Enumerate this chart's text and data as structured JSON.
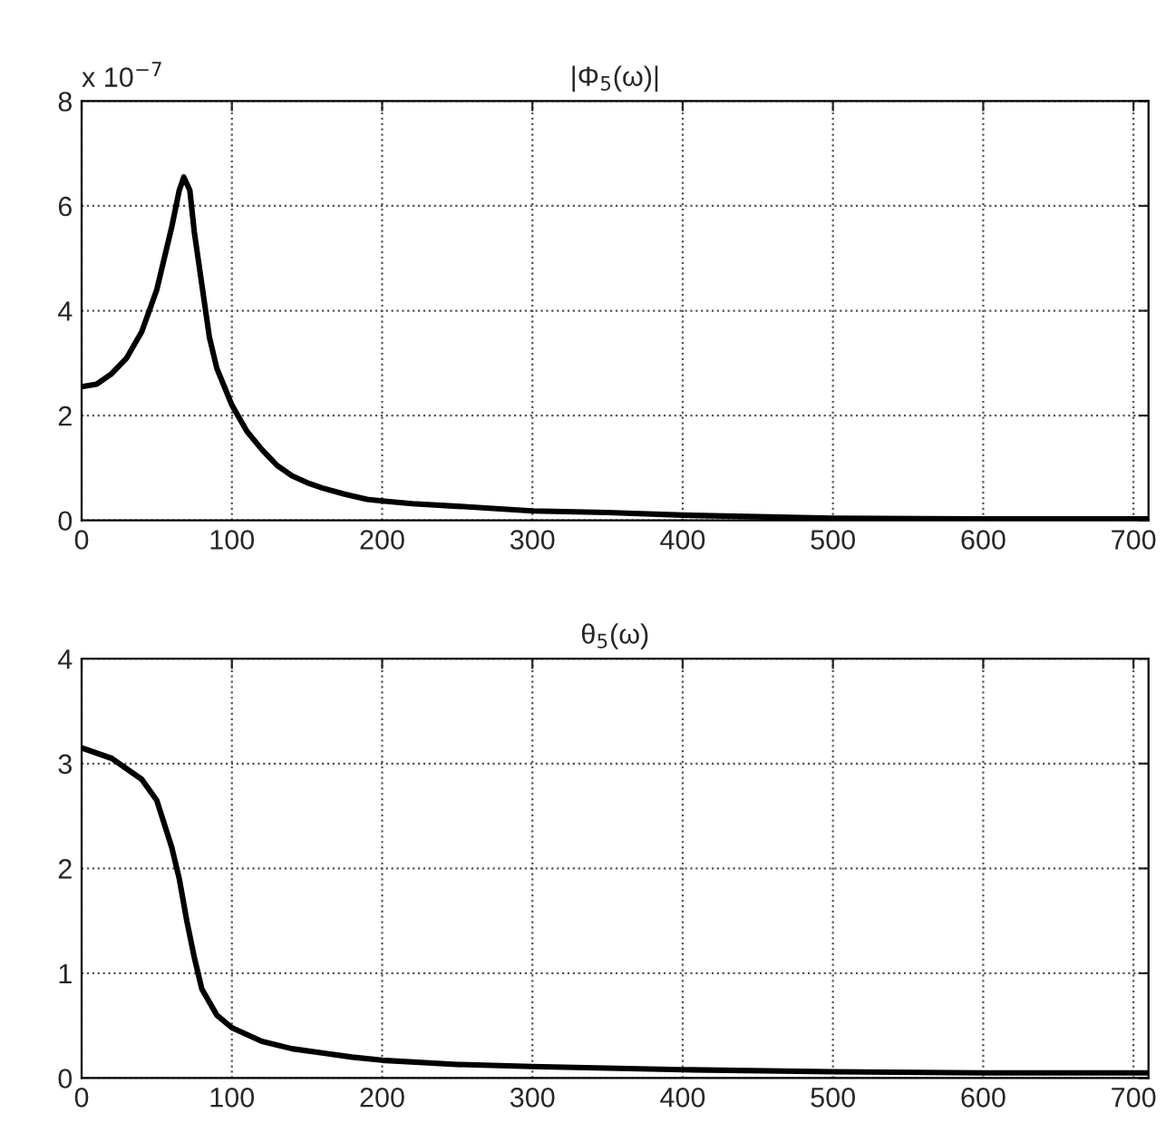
{
  "chart_data": [
    {
      "type": "line",
      "title": "|Φ$_{5}$(ω)|",
      "annotations": [
        "x 10$^{−7}$"
      ],
      "x": [
        0,
        10,
        20,
        30,
        40,
        50,
        60,
        65,
        68,
        72,
        75,
        80,
        85,
        90,
        100,
        110,
        120,
        130,
        140,
        150,
        160,
        175,
        190,
        200,
        220,
        250,
        300,
        350,
        400,
        450,
        500,
        600,
        710
      ],
      "series": [
        {
          "color": "#000000",
          "values": [
            2.55,
            2.6,
            2.8,
            3.1,
            3.6,
            4.4,
            5.6,
            6.3,
            6.55,
            6.3,
            5.5,
            4.5,
            3.5,
            2.9,
            2.2,
            1.7,
            1.35,
            1.05,
            0.85,
            0.72,
            0.62,
            0.5,
            0.4,
            0.37,
            0.32,
            0.27,
            0.18,
            0.15,
            0.1,
            0.07,
            0.04,
            0.03,
            0.03
          ]
        }
      ],
      "xlim": [
        0,
        710
      ],
      "ylim": [
        0,
        8
      ],
      "xticks": [
        0,
        100,
        200,
        300,
        400,
        500,
        600,
        700
      ],
      "yticks": [
        0,
        2,
        4,
        6,
        8
      ],
      "grid": true,
      "marker": "none",
      "line_style": "solid",
      "legend": false
    },
    {
      "type": "line",
      "title": "θ$_{5}$(ω)",
      "x": [
        0,
        20,
        40,
        50,
        60,
        65,
        70,
        75,
        80,
        90,
        100,
        120,
        140,
        160,
        180,
        200,
        250,
        300,
        400,
        500,
        600,
        710
      ],
      "series": [
        {
          "color": "#000000",
          "values": [
            3.15,
            3.05,
            2.85,
            2.65,
            2.2,
            1.9,
            1.5,
            1.15,
            0.85,
            0.6,
            0.48,
            0.35,
            0.28,
            0.24,
            0.2,
            0.17,
            0.13,
            0.11,
            0.08,
            0.06,
            0.05,
            0.05
          ]
        }
      ],
      "xlim": [
        0,
        710
      ],
      "ylim": [
        0,
        4
      ],
      "xticks": [
        0,
        100,
        200,
        300,
        400,
        500,
        600,
        700
      ],
      "yticks": [
        0,
        1,
        2,
        3,
        4
      ],
      "grid": true,
      "marker": "none",
      "line_style": "solid",
      "legend": false
    }
  ]
}
